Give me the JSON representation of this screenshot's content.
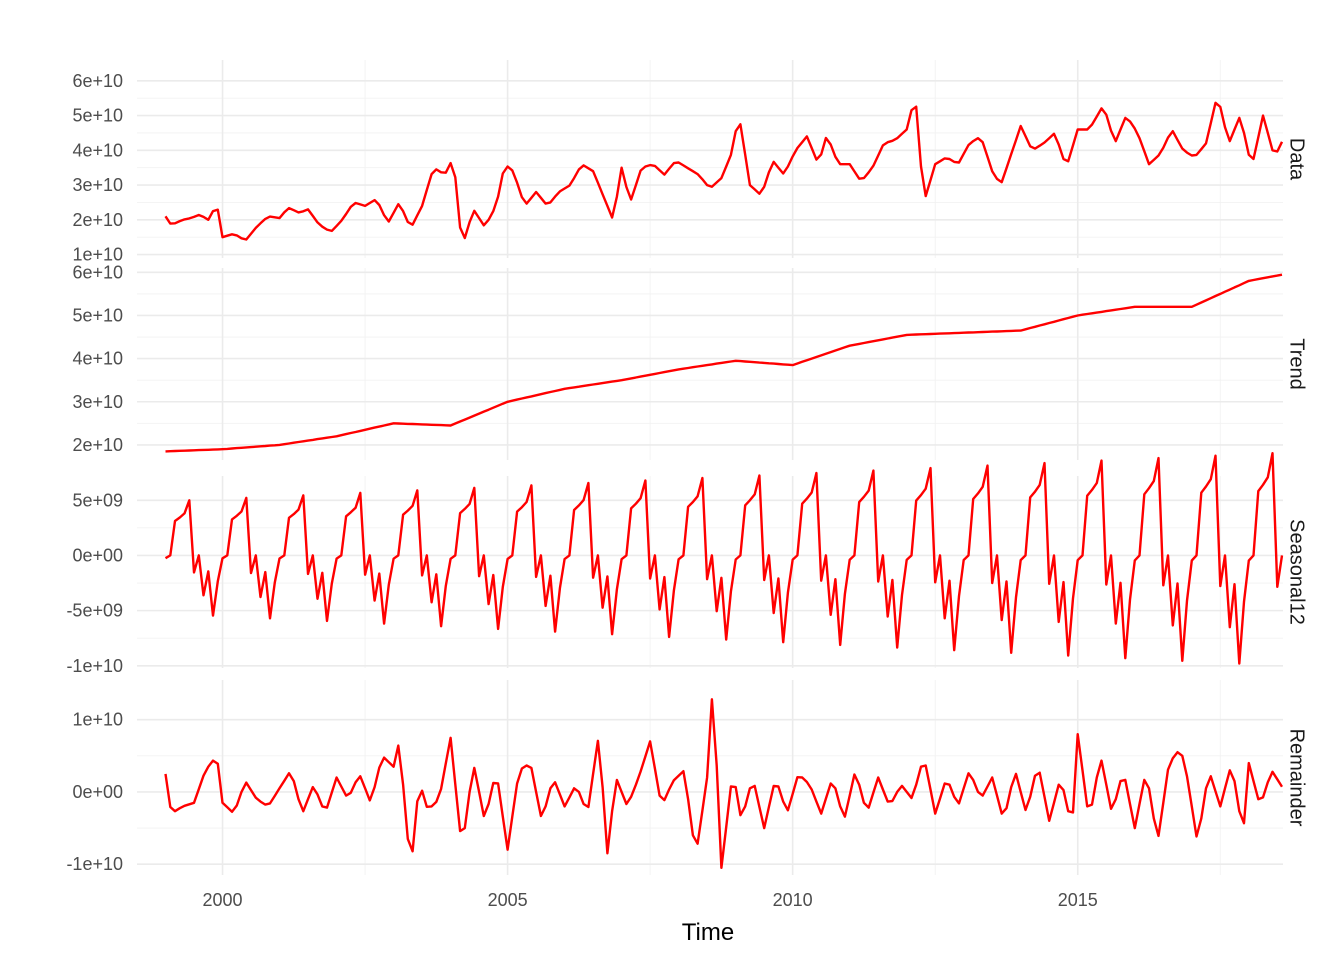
{
  "colors": {
    "series": "#ff0000",
    "grid_major": "#ebebeb",
    "grid_minor": "#f2f2f2",
    "text": "#4d4d4d"
  },
  "chart_data": {
    "type": "line",
    "title": "",
    "xlabel": "Time",
    "ylabel": "",
    "xlim": [
      1998.5,
      2018.6
    ],
    "x_ticks": [
      2000,
      2005,
      2010,
      2015
    ],
    "x_tick_labels": [
      "2000",
      "2005",
      "2010",
      "2015"
    ],
    "start": 1999.0,
    "frequency": 12,
    "grid": true,
    "legend": "none",
    "panels": [
      {
        "name": "Data",
        "ylim": [
          9000000000,
          66000000000
        ],
        "y_ticks": [
          10000000000,
          20000000000,
          30000000000,
          40000000000,
          50000000000,
          60000000000
        ],
        "y_tick_labels": [
          "1e+10",
          "2e+10",
          "3e+10",
          "4e+10",
          "5e+10",
          "6e+10"
        ],
        "anchors": [
          [
            1999.0,
            21000000000.0
          ],
          [
            1999.1,
            18500000000.0
          ],
          [
            1999.3,
            20000000000.0
          ],
          [
            1999.45,
            20500000000.0
          ],
          [
            1999.6,
            21500000000.0
          ],
          [
            1999.75,
            20000000000.0
          ],
          [
            1999.9,
            24500000000.0
          ],
          [
            2000.0,
            15000000000.0
          ],
          [
            2000.2,
            16000000000.0
          ],
          [
            2000.4,
            14000000000.0
          ],
          [
            2000.6,
            18000000000.0
          ],
          [
            2000.8,
            21000000000.0
          ],
          [
            2001.0,
            20500000000.0
          ],
          [
            2001.15,
            23500000000.0
          ],
          [
            2001.35,
            22000000000.0
          ],
          [
            2001.5,
            23000000000.0
          ],
          [
            2001.7,
            18500000000.0
          ],
          [
            2001.9,
            16500000000.0
          ],
          [
            2002.1,
            20000000000.0
          ],
          [
            2002.3,
            25000000000.0
          ],
          [
            2002.5,
            24000000000.0
          ],
          [
            2002.7,
            26000000000.0
          ],
          [
            2002.9,
            19000000000.0
          ],
          [
            2003.1,
            25000000000.0
          ],
          [
            2003.3,
            17500000000.0
          ],
          [
            2003.5,
            24000000000.0
          ],
          [
            2003.7,
            35000000000.0
          ],
          [
            2003.9,
            33000000000.0
          ],
          [
            2004.05,
            38000000000.0
          ],
          [
            2004.2,
            12000000000.0
          ],
          [
            2004.4,
            23000000000.0
          ],
          [
            2004.6,
            18000000000.0
          ],
          [
            2004.8,
            24000000000.0
          ],
          [
            2004.95,
            36000000000.0
          ],
          [
            2005.1,
            34000000000.0
          ],
          [
            2005.3,
            24000000000.0
          ],
          [
            2005.5,
            28000000000.0
          ],
          [
            2005.7,
            24000000000.0
          ],
          [
            2005.9,
            28000000000.0
          ],
          [
            2006.1,
            30000000000.0
          ],
          [
            2006.3,
            36000000000.0
          ],
          [
            2006.5,
            34000000000.0
          ],
          [
            2006.7,
            26000000000.0
          ],
          [
            2006.85,
            20000000000.0
          ],
          [
            2007.0,
            35000000000.0
          ],
          [
            2007.15,
            25000000000.0
          ],
          [
            2007.35,
            35000000000.0
          ],
          [
            2007.55,
            36000000000.0
          ],
          [
            2007.75,
            33000000000.0
          ],
          [
            2007.95,
            37000000000.0
          ],
          [
            2008.15,
            35000000000.0
          ],
          [
            2008.35,
            33000000000.0
          ],
          [
            2008.55,
            29000000000.0
          ],
          [
            2008.75,
            32000000000.0
          ],
          [
            2008.95,
            40000000000.0
          ],
          [
            2009.05,
            51000000000.0
          ],
          [
            2009.25,
            30000000000.0
          ],
          [
            2009.45,
            27000000000.0
          ],
          [
            2009.65,
            37000000000.0
          ],
          [
            2009.85,
            33000000000.0
          ],
          [
            2010.05,
            40000000000.0
          ],
          [
            2010.25,
            44000000000.0
          ],
          [
            2010.45,
            36000000000.0
          ],
          [
            2010.6,
            44500000000.0
          ],
          [
            2010.8,
            36000000000.0
          ],
          [
            2011.0,
            36000000000.0
          ],
          [
            2011.2,
            31000000000.0
          ],
          [
            2011.4,
            35000000000.0
          ],
          [
            2011.6,
            42000000000.0
          ],
          [
            2011.8,
            43000000000.0
          ],
          [
            2012.0,
            46000000000.0
          ],
          [
            2012.15,
            56000000000.0
          ],
          [
            2012.3,
            25000000000.0
          ],
          [
            2012.5,
            36000000000.0
          ],
          [
            2012.7,
            38000000000.0
          ],
          [
            2012.9,
            36000000000.0
          ],
          [
            2013.1,
            42000000000.0
          ],
          [
            2013.3,
            44000000000.0
          ],
          [
            2013.5,
            34000000000.0
          ],
          [
            2013.65,
            30000000000.0
          ],
          [
            2014.0,
            47000000000.0
          ],
          [
            2014.2,
            40000000000.0
          ],
          [
            2014.4,
            42000000000.0
          ],
          [
            2014.6,
            45000000000.0
          ],
          [
            2014.8,
            35000000000.0
          ],
          [
            2015.0,
            46000000000.0
          ],
          [
            2015.2,
            46000000000.0
          ],
          [
            2015.45,
            53000000000.0
          ],
          [
            2015.65,
            42000000000.0
          ],
          [
            2015.85,
            50000000000.0
          ],
          [
            2016.05,
            45000000000.0
          ],
          [
            2016.25,
            36000000000.0
          ],
          [
            2016.45,
            39000000000.0
          ],
          [
            2016.65,
            46000000000.0
          ],
          [
            2016.85,
            40000000000.0
          ],
          [
            2017.05,
            38000000000.0
          ],
          [
            2017.25,
            42000000000.0
          ],
          [
            2017.45,
            56000000000.0
          ],
          [
            2017.65,
            42000000000.0
          ],
          [
            2017.85,
            50000000000.0
          ],
          [
            2018.05,
            35000000000.0
          ],
          [
            2018.25,
            50000000000.0
          ],
          [
            2018.45,
            38000000000.0
          ],
          [
            2018.6,
            43000000000.0
          ]
        ]
      },
      {
        "name": "Trend",
        "ylim": [
          16500000000,
          61000000000
        ],
        "y_ticks": [
          20000000000,
          30000000000,
          40000000000,
          50000000000,
          60000000000
        ],
        "y_tick_labels": [
          "2e+10",
          "3e+10",
          "4e+10",
          "5e+10",
          "6e+10"
        ],
        "anchors": [
          [
            1999.0,
            18500000000.0
          ],
          [
            2000.0,
            19000000000.0
          ],
          [
            2001.0,
            20000000000.0
          ],
          [
            2002.0,
            22000000000.0
          ],
          [
            2003.0,
            25000000000.0
          ],
          [
            2004.0,
            24500000000.0
          ],
          [
            2005.0,
            30000000000.0
          ],
          [
            2006.0,
            33000000000.0
          ],
          [
            2007.0,
            35000000000.0
          ],
          [
            2008.0,
            37500000000.0
          ],
          [
            2009.0,
            39500000000.0
          ],
          [
            2010.0,
            38500000000.0
          ],
          [
            2011.0,
            43000000000.0
          ],
          [
            2012.0,
            45500000000.0
          ],
          [
            2013.0,
            46000000000.0
          ],
          [
            2014.0,
            46500000000.0
          ],
          [
            2015.0,
            50000000000.0
          ],
          [
            2016.0,
            52000000000.0
          ],
          [
            2017.0,
            52000000000.0
          ],
          [
            2018.0,
            58000000000.0
          ],
          [
            2018.6,
            59500000000.0
          ]
        ]
      },
      {
        "name": "Seasonal12",
        "ylim": [
          -10200000000,
          7200000000
        ],
        "y_ticks": [
          -10000000000,
          -5000000000,
          0,
          5000000000
        ],
        "y_tick_labels": [
          "-1e+10",
          "-5e+09",
          "0e+00",
          "5e+09"
        ],
        "amp_start": 5000000000,
        "amp_end": 9500000000
      },
      {
        "name": "Remainder",
        "ylim": [
          -11500000000,
          15500000000
        ],
        "y_ticks": [
          -10000000000,
          0,
          10000000000
        ],
        "y_tick_labels": [
          "-1e+10",
          "0e+00",
          "1e+10"
        ],
        "anchors": [
          [
            1999.0,
            2500000000.0
          ],
          [
            1999.1,
            -3000000000.0
          ],
          [
            1999.3,
            -2000000000.0
          ],
          [
            1999.5,
            -1500000000.0
          ],
          [
            1999.7,
            3000000000.0
          ],
          [
            1999.9,
            5000000000.0
          ],
          [
            2000.0,
            -1500000000.0
          ],
          [
            2000.2,
            -3000000000.0
          ],
          [
            2000.4,
            1500000000.0
          ],
          [
            2000.6,
            -1000000000.0
          ],
          [
            2000.8,
            -2000000000.0
          ],
          [
            2001.0,
            500000000.0
          ],
          [
            2001.2,
            3000000000.0
          ],
          [
            2001.4,
            -3000000000.0
          ],
          [
            2001.6,
            1000000000.0
          ],
          [
            2001.8,
            -3000000000.0
          ],
          [
            2002.0,
            2000000000.0
          ],
          [
            2002.2,
            -1000000000.0
          ],
          [
            2002.4,
            2500000000.0
          ],
          [
            2002.6,
            -1500000000.0
          ],
          [
            2002.8,
            5000000000.0
          ],
          [
            2003.0,
            3500000000.0
          ],
          [
            2003.1,
            7000000000.0
          ],
          [
            2003.3,
            -11000000000.0
          ],
          [
            2003.45,
            1500000000.0
          ],
          [
            2003.6,
            -2500000000.0
          ],
          [
            2003.8,
            -1000000000.0
          ],
          [
            2004.0,
            7500000000.0
          ],
          [
            2004.2,
            -8000000000.0
          ],
          [
            2004.4,
            4000000000.0
          ],
          [
            2004.6,
            -4000000000.0
          ],
          [
            2004.8,
            3000000000.0
          ],
          [
            2005.0,
            -8000000000.0
          ],
          [
            2005.2,
            3000000000.0
          ],
          [
            2005.4,
            4000000000.0
          ],
          [
            2005.6,
            -4000000000.0
          ],
          [
            2005.8,
            2000000000.0
          ],
          [
            2006.0,
            -2000000000.0
          ],
          [
            2006.2,
            1000000000.0
          ],
          [
            2006.4,
            -3000000000.0
          ],
          [
            2006.6,
            8000000000.0
          ],
          [
            2006.75,
            -8500000000.0
          ],
          [
            2006.9,
            2000000000.0
          ],
          [
            2007.1,
            -2000000000.0
          ],
          [
            2007.3,
            2000000000.0
          ],
          [
            2007.5,
            7000000000.0
          ],
          [
            2007.7,
            -2000000000.0
          ],
          [
            2007.9,
            1500000000.0
          ],
          [
            2008.1,
            3000000000.0
          ],
          [
            2008.3,
            -9000000000.0
          ],
          [
            2008.5,
            2000000000.0
          ],
          [
            2008.6,
            15000000000.0
          ],
          [
            2008.75,
            -10500000000.0
          ],
          [
            2008.95,
            3000000000.0
          ],
          [
            2009.1,
            -4000000000.0
          ],
          [
            2009.3,
            2000000000.0
          ],
          [
            2009.5,
            -5000000000.0
          ],
          [
            2009.7,
            2000000000.0
          ],
          [
            2009.9,
            -3000000000.0
          ],
          [
            2010.1,
            2500000000.0
          ],
          [
            2010.3,
            1000000000.0
          ],
          [
            2010.5,
            -3000000000.0
          ],
          [
            2010.7,
            2000000000.0
          ],
          [
            2010.9,
            -4000000000.0
          ],
          [
            2011.1,
            3000000000.0
          ],
          [
            2011.3,
            -3000000000.0
          ],
          [
            2011.5,
            2000000000.0
          ],
          [
            2011.7,
            -2000000000.0
          ],
          [
            2011.9,
            1000000000.0
          ],
          [
            2012.1,
            -1000000000.0
          ],
          [
            2012.3,
            5000000000.0
          ],
          [
            2012.5,
            -3000000000.0
          ],
          [
            2012.7,
            2000000000.0
          ],
          [
            2012.9,
            -2000000000.0
          ],
          [
            2013.1,
            3000000000.0
          ],
          [
            2013.3,
            -1000000000.0
          ],
          [
            2013.5,
            2000000000.0
          ],
          [
            2013.7,
            -4000000000.0
          ],
          [
            2013.9,
            3000000000.0
          ],
          [
            2014.1,
            -3000000000.0
          ],
          [
            2014.3,
            4000000000.0
          ],
          [
            2014.5,
            -4000000000.0
          ],
          [
            2014.7,
            2000000000.0
          ],
          [
            2014.9,
            -5000000000.0
          ],
          [
            2015.0,
            8000000000.0
          ],
          [
            2015.2,
            -4000000000.0
          ],
          [
            2015.4,
            5000000000.0
          ],
          [
            2015.6,
            -3000000000.0
          ],
          [
            2015.8,
            3000000000.0
          ],
          [
            2016.0,
            -5000000000.0
          ],
          [
            2016.2,
            3000000000.0
          ],
          [
            2016.4,
            -7000000000.0
          ],
          [
            2016.6,
            4000000000.0
          ],
          [
            2016.8,
            6000000000.0
          ],
          [
            2016.9,
            3000000000.0
          ],
          [
            2017.1,
            -7000000000.0
          ],
          [
            2017.3,
            3000000000.0
          ],
          [
            2017.5,
            -2000000000.0
          ],
          [
            2017.7,
            4000000000.0
          ],
          [
            2017.9,
            -6000000000.0
          ],
          [
            2018.0,
            4000000000.0
          ],
          [
            2018.2,
            -2000000000.0
          ],
          [
            2018.4,
            3000000000.0
          ],
          [
            2018.6,
            500000000.0
          ]
        ]
      }
    ]
  }
}
